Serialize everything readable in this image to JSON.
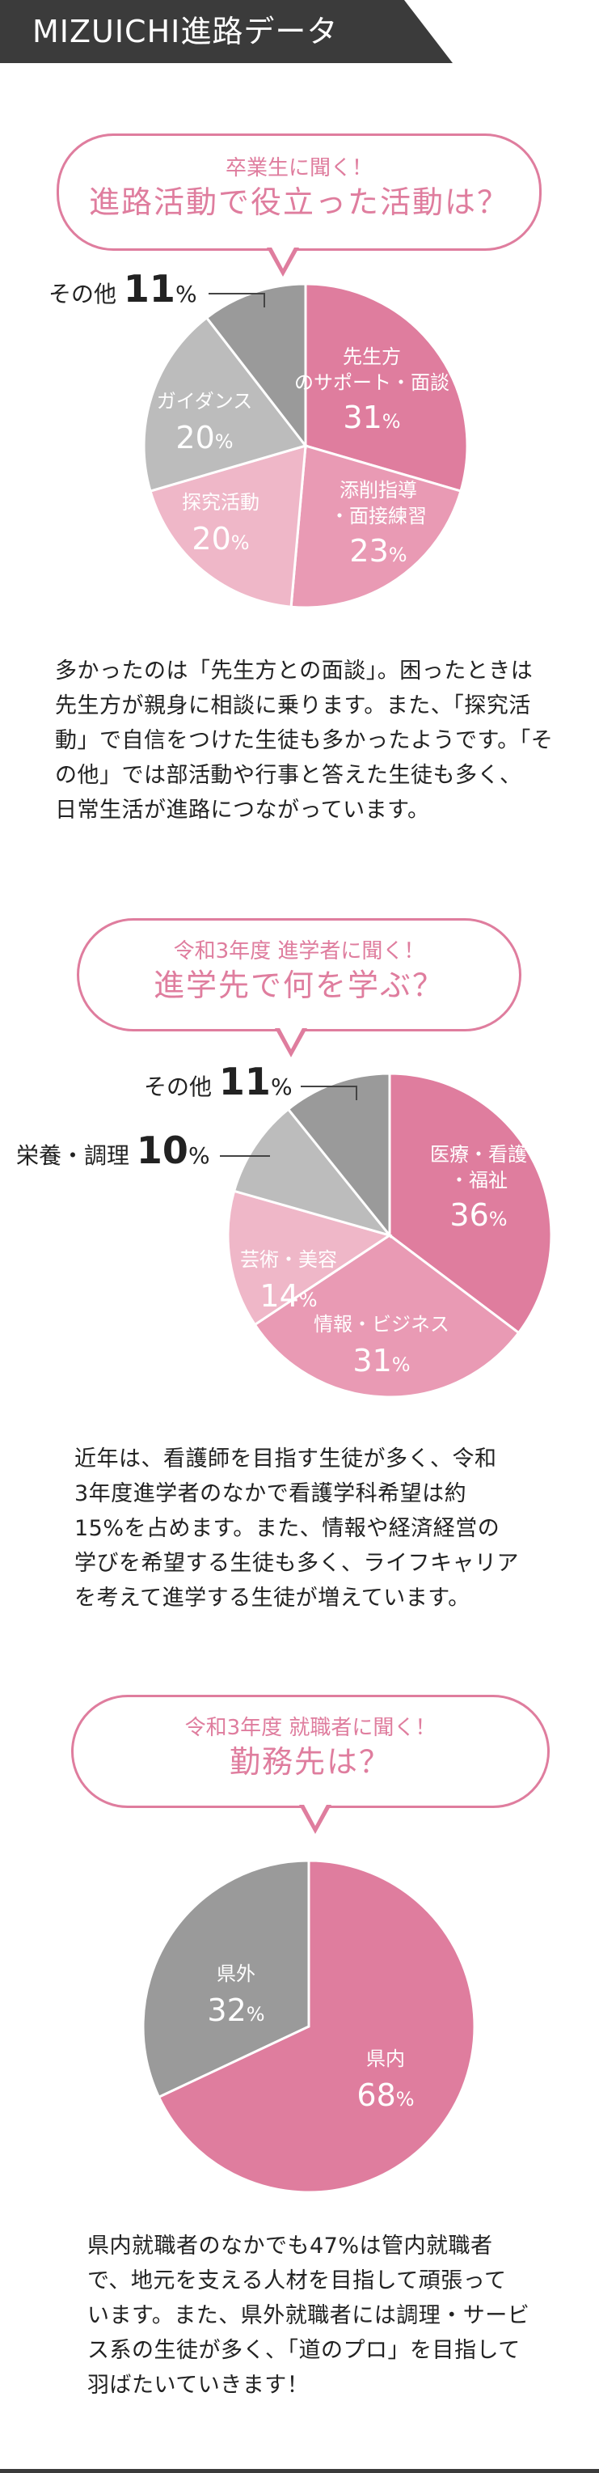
{
  "header": {
    "title": "MIZUICHI進路データ"
  },
  "colors": {
    "pink_dark": "#df7d9e",
    "pink_mid": "#e99ab4",
    "pink_light": "#efb7c8",
    "gray_light": "#bcbcbc",
    "gray_dark": "#9a9a9a",
    "accent_text": "#df7d9e",
    "header_bg": "#3b3b3b"
  },
  "sections": [
    {
      "bubble_small": "卒業生に聞く！",
      "bubble_big": "進路活動で役立った活動は？",
      "description": "多かったのは「先生方との面談」。困ったときは\n先生方が親身に相談に乗ります。また、「探究活\n動」で自信をつけた生徒も多かったようです。「そ\nの他」では部活動や行事と答えた生徒も多く、\n日常生活が進路につながっています。",
      "outside_labels": [
        {
          "label": "その他",
          "value": "11",
          "unit": "%"
        }
      ]
    },
    {
      "bubble_small": "令和3年度 進学者に聞く！",
      "bubble_big": "進学先で何を学ぶ？",
      "description": "近年は、看護師を目指す生徒が多く、令和\n3年度進学者のなかで看護学科希望は約\n15%を占めます。また、情報や経済経営の\n学びを希望する生徒も多く、ライフキャリア\nを考えて進学する生徒が増えています。",
      "outside_labels": [
        {
          "label": "その他",
          "value": "11",
          "unit": "%"
        },
        {
          "label": "栄養・調理",
          "value": "10",
          "unit": "%"
        }
      ]
    },
    {
      "bubble_small": "令和3年度 就職者に聞く！",
      "bubble_big": "勤務先は？",
      "description": "県内就職者のなかでも47%は管内就職者\nで、地元を支える人材を目指して頑張って\nいます。また、県外就職者には調理・サービ\nス系の生徒が多く、「道のプロ」を目指して\n羽ばたいていきます！",
      "outside_labels": []
    }
  ],
  "chart_data": [
    {
      "type": "pie",
      "title": "進路活動で役立った活動は？",
      "unit": "%",
      "slices": [
        {
          "label": "先生方のサポート・面談",
          "value": 31,
          "color": "#df7d9e"
        },
        {
          "label": "添削指導・面接練習",
          "value": 23,
          "color": "#e99ab4"
        },
        {
          "label": "探究活動",
          "value": 20,
          "color": "#efb7c8"
        },
        {
          "label": "ガイダンス",
          "value": 20,
          "color": "#bcbcbc"
        },
        {
          "label": "その他",
          "value": 11,
          "color": "#9a9a9a"
        }
      ]
    },
    {
      "type": "pie",
      "title": "進学先で何を学ぶ？",
      "unit": "%",
      "slices": [
        {
          "label": "医療・看護・福祉",
          "value": 36,
          "color": "#df7d9e"
        },
        {
          "label": "情報・ビジネス",
          "value": 31,
          "color": "#e99ab4"
        },
        {
          "label": "芸術・美容",
          "value": 14,
          "color": "#efb7c8"
        },
        {
          "label": "栄養・調理",
          "value": 10,
          "color": "#bcbcbc"
        },
        {
          "label": "その他",
          "value": 11,
          "color": "#9a9a9a"
        }
      ]
    },
    {
      "type": "pie",
      "title": "勤務先は？",
      "unit": "%",
      "slices": [
        {
          "label": "県内",
          "value": 68,
          "color": "#df7d9e"
        },
        {
          "label": "県外",
          "value": 32,
          "color": "#9a9a9a"
        }
      ]
    }
  ]
}
